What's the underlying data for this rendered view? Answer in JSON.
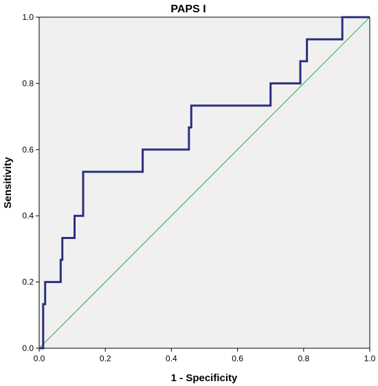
{
  "chart_data": {
    "type": "line",
    "title": "PAPS I",
    "xlabel": "1 - Specificity",
    "ylabel": "Sensitivity",
    "xlim": [
      0,
      1
    ],
    "ylim": [
      0,
      1
    ],
    "xticks": [
      "0.0",
      "0.2",
      "0.4",
      "0.6",
      "0.8",
      "1.0"
    ],
    "yticks": [
      "0.0",
      "0.2",
      "0.4",
      "0.6",
      "0.8",
      "1.0"
    ],
    "grid": false,
    "background_color": "#f0f0f0",
    "series": [
      {
        "role": "roc-curve",
        "color": "#2b2e7d",
        "step": true,
        "x": [
          0.0,
          0.0,
          0.012,
          0.012,
          0.018,
          0.018,
          0.065,
          0.065,
          0.07,
          0.07,
          0.107,
          0.107,
          0.133,
          0.133,
          0.313,
          0.313,
          0.453,
          0.453,
          0.46,
          0.46,
          0.7,
          0.7,
          0.79,
          0.79,
          0.81,
          0.81,
          0.917,
          0.917,
          1.0
        ],
        "y": [
          0.0,
          0.0,
          0.0,
          0.133,
          0.133,
          0.2,
          0.2,
          0.267,
          0.267,
          0.333,
          0.333,
          0.4,
          0.4,
          0.533,
          0.533,
          0.6,
          0.6,
          0.667,
          0.667,
          0.733,
          0.733,
          0.8,
          0.8,
          0.867,
          0.867,
          0.933,
          0.933,
          1.0,
          1.0
        ]
      },
      {
        "role": "reference-line",
        "color": "#4caf50",
        "x": [
          0,
          1
        ],
        "y": [
          0,
          1
        ]
      }
    ]
  }
}
